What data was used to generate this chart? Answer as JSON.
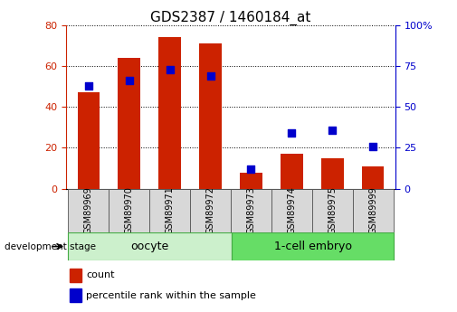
{
  "title": "GDS2387 / 1460184_at",
  "samples": [
    "GSM89969",
    "GSM89970",
    "GSM89971",
    "GSM89972",
    "GSM89973",
    "GSM89974",
    "GSM89975",
    "GSM89999"
  ],
  "counts": [
    47,
    64,
    74,
    71,
    8,
    17,
    15,
    11
  ],
  "percentiles": [
    63,
    66,
    73,
    69,
    12,
    34,
    36,
    26
  ],
  "bar_color": "#cc2200",
  "dot_color": "#0000cc",
  "ylim_left": [
    0,
    80
  ],
  "ylim_right": [
    0,
    100
  ],
  "yticks_left": [
    0,
    20,
    40,
    60,
    80
  ],
  "yticks_right": [
    0,
    25,
    50,
    75,
    100
  ],
  "bar_width": 0.55,
  "dot_size": 30,
  "plot_bg": "#ffffff",
  "title_fontsize": 11,
  "tick_fontsize": 8,
  "legend_fontsize": 8,
  "group_label_fontsize": 9,
  "sample_label_fontsize": 7,
  "dev_stage_label": "development stage",
  "left_tick_color": "#cc2200",
  "right_tick_color": "#0000cc",
  "oocyte_color": "#ccf0cc",
  "embryo_color": "#66dd66",
  "gray_box_color": "#d8d8d8"
}
